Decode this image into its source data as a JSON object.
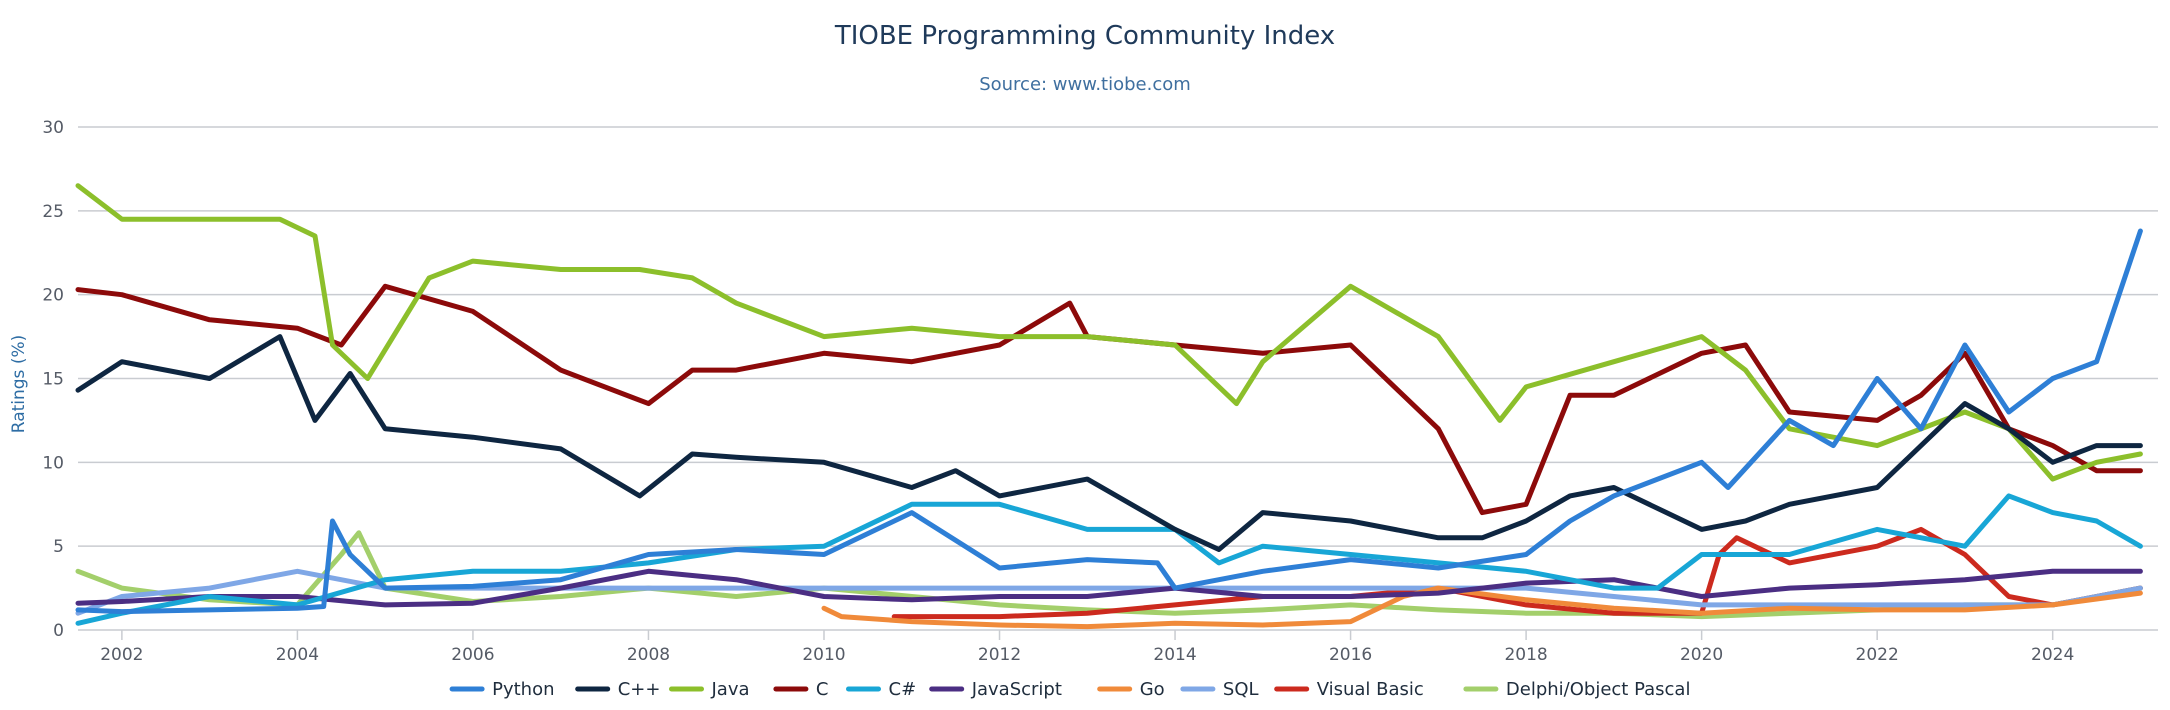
{
  "chart_data": {
    "type": "line",
    "title": "TIOBE Programming Community Index",
    "subtitle": "Source: www.tiobe.com",
    "ylabel": "Ratings (%)",
    "xlabel": "",
    "xlim": [
      2001.5,
      2025.2
    ],
    "ylim": [
      0,
      30
    ],
    "x_ticks": [
      2002,
      2004,
      2006,
      2008,
      2010,
      2012,
      2014,
      2016,
      2018,
      2020,
      2022,
      2024
    ],
    "y_ticks": [
      0,
      5,
      10,
      15,
      20,
      25,
      30
    ],
    "grid": "horizontal",
    "legend_position": "bottom",
    "series": [
      {
        "name": "Python",
        "color": "#2e7fd6",
        "x": [
          2001.5,
          2002,
          2003,
          2004,
          2004.3,
          2004.4,
          2004.6,
          2005,
          2006,
          2007,
          2008,
          2009,
          2010,
          2011,
          2012,
          2013,
          2013.8,
          2014,
          2015,
          2016,
          2017,
          2018,
          2018.5,
          2019,
          2020,
          2020.3,
          2021,
          2021.5,
          2022,
          2022.5,
          2023,
          2023.5,
          2024,
          2024.5,
          2025
        ],
        "y": [
          1.2,
          1.1,
          1.2,
          1.3,
          1.4,
          6.5,
          4.5,
          2.5,
          2.6,
          3.0,
          4.5,
          4.8,
          4.5,
          7.0,
          3.7,
          4.2,
          4.0,
          2.5,
          3.5,
          4.2,
          3.7,
          4.5,
          6.5,
          8.0,
          10.0,
          8.5,
          12.5,
          11.0,
          15.0,
          12.0,
          17.0,
          13.0,
          15.0,
          16.0,
          23.8
        ]
      },
      {
        "name": "C++",
        "color": "#0e2641",
        "x": [
          2001.5,
          2002,
          2003,
          2003.8,
          2004.2,
          2004.6,
          2005,
          2006,
          2007,
          2007.9,
          2008.5,
          2009,
          2010,
          2011,
          2011.5,
          2012,
          2013,
          2014,
          2014.5,
          2015,
          2016,
          2017,
          2017.5,
          2018,
          2018.5,
          2019,
          2020,
          2020.5,
          2021,
          2022,
          2023,
          2023.5,
          2024,
          2024.5,
          2025
        ],
        "y": [
          14.3,
          16.0,
          15.0,
          17.5,
          12.5,
          15.3,
          12.0,
          11.5,
          10.8,
          8.0,
          10.5,
          10.3,
          10.0,
          8.5,
          9.5,
          8.0,
          9.0,
          6.0,
          4.8,
          7.0,
          6.5,
          5.5,
          5.5,
          6.5,
          8.0,
          8.5,
          6.0,
          6.5,
          7.5,
          8.5,
          13.5,
          12.0,
          10.0,
          11.0,
          11.0
        ]
      },
      {
        "name": "Java",
        "color": "#8cbf2b",
        "x": [
          2001.5,
          2002,
          2003,
          2003.8,
          2004.2,
          2004.4,
          2004.8,
          2005.5,
          2006,
          2007,
          2007.9,
          2008.5,
          2009,
          2010,
          2011,
          2012,
          2013,
          2014,
          2014.7,
          2015,
          2016,
          2017,
          2017.7,
          2018,
          2019,
          2020,
          2020.5,
          2021,
          2022,
          2023,
          2023.5,
          2024,
          2024.5,
          2025
        ],
        "y": [
          26.5,
          24.5,
          24.5,
          24.5,
          23.5,
          17.0,
          15.0,
          21.0,
          22.0,
          21.5,
          21.5,
          21.0,
          19.5,
          17.5,
          18.0,
          17.5,
          17.5,
          17.0,
          13.5,
          16.0,
          20.5,
          17.5,
          12.5,
          14.5,
          16.0,
          17.5,
          15.5,
          12.0,
          11.0,
          13.0,
          12.0,
          9.0,
          10.0,
          10.5
        ]
      },
      {
        "name": "C",
        "color": "#8c0a0a",
        "x": [
          2001.5,
          2002,
          2003,
          2004,
          2004.5,
          2005,
          2006,
          2007,
          2008,
          2008.5,
          2009,
          2010,
          2011,
          2012,
          2012.8,
          2013,
          2014,
          2015,
          2016,
          2016.5,
          2017,
          2017.5,
          2018,
          2018.5,
          2019,
          2020,
          2020.5,
          2021,
          2022,
          2022.5,
          2023,
          2023.5,
          2024,
          2024.5,
          2025
        ],
        "y": [
          20.3,
          20.0,
          18.5,
          18.0,
          17.0,
          20.5,
          19.0,
          15.5,
          13.5,
          15.5,
          15.5,
          16.5,
          16.0,
          17.0,
          19.5,
          17.5,
          17.0,
          16.5,
          17.0,
          14.5,
          12.0,
          7.0,
          7.5,
          14.0,
          14.0,
          16.5,
          17.0,
          13.0,
          12.5,
          14.0,
          16.5,
          12.0,
          11.0,
          9.5,
          9.5
        ]
      },
      {
        "name": "C#",
        "color": "#18a6d6",
        "x": [
          2001.5,
          2002,
          2003,
          2004,
          2005,
          2006,
          2007,
          2008,
          2009,
          2010,
          2011,
          2012,
          2013,
          2014,
          2014.5,
          2015,
          2016,
          2017,
          2018,
          2019,
          2019.5,
          2020,
          2021,
          2022,
          2023,
          2023.5,
          2024,
          2024.5,
          2025
        ],
        "y": [
          0.4,
          1.0,
          2.0,
          1.5,
          3.0,
          3.5,
          3.5,
          4.0,
          4.8,
          5.0,
          7.5,
          7.5,
          6.0,
          6.0,
          4.0,
          5.0,
          4.5,
          4.0,
          3.5,
          2.5,
          2.5,
          4.5,
          4.5,
          6.0,
          5.0,
          8.0,
          7.0,
          6.5,
          5.0
        ]
      },
      {
        "name": "JavaScript",
        "color": "#4b2e83",
        "x": [
          2001.5,
          2002,
          2003,
          2004,
          2005,
          2006,
          2007,
          2008,
          2009,
          2010,
          2011,
          2012,
          2013,
          2014,
          2015,
          2016,
          2017,
          2018,
          2019,
          2020,
          2021,
          2022,
          2023,
          2024,
          2024.5,
          2025
        ],
        "y": [
          1.6,
          1.7,
          2.0,
          2.0,
          1.5,
          1.6,
          2.5,
          3.5,
          3.0,
          2.0,
          1.8,
          2.0,
          2.0,
          2.5,
          2.0,
          2.0,
          2.2,
          2.8,
          3.0,
          2.0,
          2.5,
          2.7,
          3.0,
          3.5,
          3.5,
          3.5
        ]
      },
      {
        "name": "Go",
        "color": "#f08a3a",
        "x": [
          2010,
          2010.2,
          2011,
          2012,
          2013,
          2014,
          2015,
          2016,
          2016.6,
          2017,
          2018,
          2019,
          2020,
          2021,
          2022,
          2023,
          2024,
          2025
        ],
        "y": [
          1.3,
          0.8,
          0.5,
          0.3,
          0.2,
          0.4,
          0.3,
          0.5,
          2.0,
          2.5,
          1.8,
          1.3,
          1.0,
          1.3,
          1.2,
          1.2,
          1.5,
          2.2
        ]
      },
      {
        "name": "SQL",
        "color": "#7fa7e6",
        "x": [
          2001.5,
          2002,
          2003,
          2004,
          2005,
          2006,
          2007,
          2008,
          2009,
          2010,
          2011,
          2012,
          2013,
          2014,
          2015,
          2016,
          2017,
          2018,
          2019,
          2020,
          2021,
          2022,
          2023,
          2024,
          2025
        ],
        "y": [
          1.0,
          2.0,
          2.5,
          3.5,
          2.5,
          2.5,
          2.5,
          2.5,
          2.5,
          2.5,
          2.5,
          2.5,
          2.5,
          2.5,
          2.5,
          2.5,
          2.5,
          2.5,
          2.0,
          1.5,
          1.5,
          1.5,
          1.5,
          1.5,
          2.5
        ]
      },
      {
        "name": "Visual Basic",
        "color": "#cc2a1e",
        "x": [
          2010.8,
          2011,
          2012,
          2013,
          2014,
          2015,
          2016,
          2017,
          2018,
          2019,
          2020,
          2020.2,
          2020.4,
          2021,
          2022,
          2022.5,
          2023,
          2023.5,
          2024,
          2025
        ],
        "y": [
          0.8,
          0.8,
          0.8,
          1.0,
          1.5,
          2.0,
          2.0,
          2.5,
          1.5,
          1.0,
          1.0,
          4.5,
          5.5,
          4.0,
          5.0,
          6.0,
          4.5,
          2.0,
          1.5,
          2.5
        ]
      },
      {
        "name": "Delphi/Object Pascal",
        "color": "#a3cf6b",
        "x": [
          2001.5,
          2002,
          2003,
          2004,
          2004.5,
          2004.7,
          2005,
          2006,
          2007,
          2008,
          2009,
          2010,
          2011,
          2012,
          2013,
          2014,
          2015,
          2016,
          2017,
          2018,
          2019,
          2020,
          2021,
          2022,
          2023,
          2024,
          2025
        ],
        "y": [
          3.5,
          2.5,
          1.8,
          1.5,
          4.5,
          5.8,
          2.5,
          1.7,
          2.0,
          2.5,
          2.0,
          2.5,
          2.0,
          1.5,
          1.2,
          1.0,
          1.2,
          1.5,
          1.2,
          1.0,
          1.0,
          0.8,
          1.0,
          1.2,
          1.5,
          1.5,
          2.5
        ]
      }
    ]
  }
}
